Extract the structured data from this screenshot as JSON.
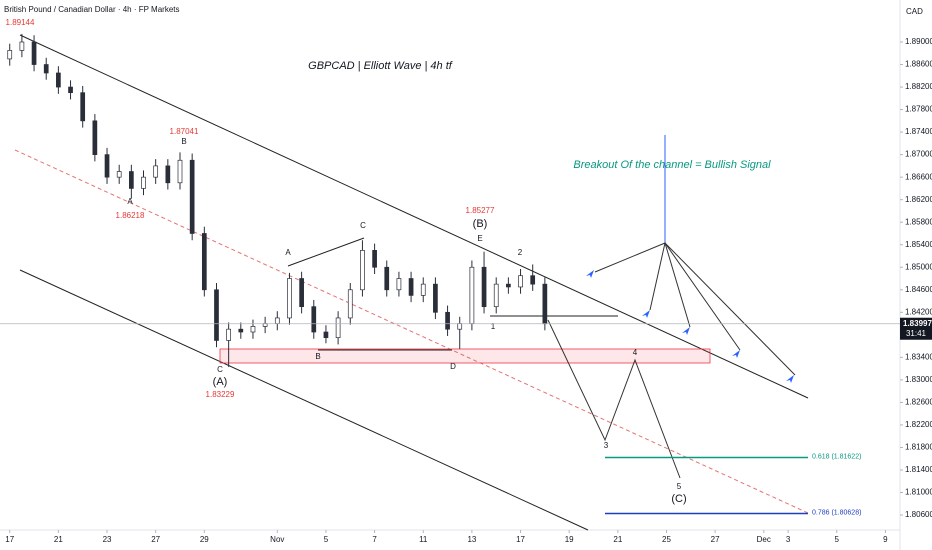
{
  "header": "British Pound / Canadian Dollar · 4h · FP Markets",
  "currency": "CAD",
  "countdown": "31:41",
  "chart_data": {
    "type": "candlestick",
    "title": "GBPCAD | Elliott Wave | 4h tf",
    "x": [
      0,
      0.5,
      1,
      1.5,
      2,
      2.5,
      3,
      3.5,
      4,
      4.5,
      5,
      5.5,
      6,
      6.5,
      7,
      7.5,
      8,
      8.5,
      9,
      9.5,
      10,
      10.5,
      11,
      11.5,
      12,
      12.5,
      13,
      13.5,
      14,
      14.5,
      15,
      15.5,
      16,
      16.5,
      17,
      17.5,
      18,
      18.5,
      19,
      19.5,
      20,
      20.5,
      21,
      21.5,
      22
    ],
    "open": [
      1.887,
      1.8885,
      1.89,
      1.886,
      1.8845,
      1.882,
      1.881,
      1.876,
      1.87,
      1.866,
      1.867,
      1.864,
      1.866,
      1.868,
      1.865,
      1.869,
      1.856,
      1.846,
      1.837,
      1.839,
      1.8385,
      1.8395,
      1.84,
      1.841,
      1.848,
      1.843,
      1.8385,
      1.8375,
      1.841,
      1.846,
      1.853,
      1.85,
      1.846,
      1.848,
      1.845,
      1.847,
      1.842,
      1.839,
      1.84,
      1.85,
      1.843,
      1.847,
      1.8465,
      1.8485,
      1.847
    ],
    "high": [
      1.8897,
      1.89144,
      1.8912,
      1.8872,
      1.8857,
      1.8832,
      1.8822,
      1.8772,
      1.8712,
      1.8682,
      1.8682,
      1.8672,
      1.8692,
      1.8692,
      1.87041,
      1.8702,
      1.8572,
      1.8472,
      1.8402,
      1.8402,
      1.8407,
      1.8412,
      1.8422,
      1.849,
      1.8492,
      1.8442,
      1.8397,
      1.8422,
      1.8472,
      1.8548,
      1.8542,
      1.8512,
      1.8492,
      1.8492,
      1.8482,
      1.8482,
      1.8432,
      1.8412,
      1.8512,
      1.85277,
      1.8482,
      1.8482,
      1.8497,
      1.8505,
      1.8482
    ],
    "low": [
      1.8858,
      1.8873,
      1.8848,
      1.8833,
      1.8808,
      1.8798,
      1.8748,
      1.8688,
      1.8648,
      1.8648,
      1.86218,
      1.8628,
      1.8648,
      1.8638,
      1.8638,
      1.8548,
      1.8448,
      1.8358,
      1.83229,
      1.8373,
      1.8373,
      1.8383,
      1.8388,
      1.8398,
      1.8418,
      1.8373,
      1.8365,
      1.8363,
      1.8398,
      1.8448,
      1.8488,
      1.8448,
      1.8448,
      1.8438,
      1.8438,
      1.8408,
      1.8378,
      1.8355,
      1.8388,
      1.8418,
      1.8418,
      1.8453,
      1.8453,
      1.8458,
      1.8388
    ],
    "close": [
      1.8885,
      1.89,
      1.886,
      1.8845,
      1.882,
      1.881,
      1.876,
      1.87,
      1.866,
      1.867,
      1.864,
      1.866,
      1.868,
      1.865,
      1.869,
      1.856,
      1.846,
      1.837,
      1.839,
      1.8385,
      1.8395,
      1.84,
      1.841,
      1.848,
      1.843,
      1.8385,
      1.8375,
      1.841,
      1.846,
      1.853,
      1.85,
      1.846,
      1.848,
      1.845,
      1.847,
      1.842,
      1.839,
      1.84,
      1.85,
      1.843,
      1.847,
      1.8465,
      1.8485,
      1.847,
      1.83997
    ],
    "color": "#2a2e39",
    "last_price": {
      "value": 1.83997,
      "label": "1.83997"
    },
    "xlim": [
      -0.4,
      36.6
    ],
    "xticks": [
      {
        "value": 0,
        "label": "17"
      },
      {
        "value": 2,
        "label": "21"
      },
      {
        "value": 4,
        "label": "23"
      },
      {
        "value": 6,
        "label": "27"
      },
      {
        "value": 8,
        "label": "29"
      },
      {
        "value": 11,
        "label": "Nov"
      },
      {
        "value": 13,
        "label": "5"
      },
      {
        "value": 15,
        "label": "7"
      },
      {
        "value": 17,
        "label": "11"
      },
      {
        "value": 19,
        "label": "13"
      },
      {
        "value": 21,
        "label": "17"
      },
      {
        "value": 23,
        "label": "19"
      },
      {
        "value": 25,
        "label": "21"
      },
      {
        "value": 27,
        "label": "25"
      },
      {
        "value": 29,
        "label": "27"
      },
      {
        "value": 31,
        "label": "Dec"
      },
      {
        "value": 32,
        "label": "3"
      },
      {
        "value": 34,
        "label": "5"
      },
      {
        "value": 36,
        "label": "9"
      }
    ],
    "ylim": [
      1.80334,
      1.89746
    ],
    "yticks": [
      {
        "value": 1.806,
        "label": "1.80600"
      },
      {
        "value": 1.81,
        "label": "1.81000"
      },
      {
        "value": 1.814,
        "label": "1.81400"
      },
      {
        "value": 1.818,
        "label": "1.81800"
      },
      {
        "value": 1.822,
        "label": "1.82200"
      },
      {
        "value": 1.826,
        "label": "1.82600"
      },
      {
        "value": 1.83,
        "label": "1.83000"
      },
      {
        "value": 1.834,
        "label": "1.83400"
      },
      {
        "value": 1.838,
        "label": "1.83800"
      },
      {
        "value": 1.842,
        "label": "1.84200"
      },
      {
        "value": 1.846,
        "label": "1.84600"
      },
      {
        "value": 1.85,
        "label": "1.85000"
      },
      {
        "value": 1.854,
        "label": "1.85400"
      },
      {
        "value": 1.858,
        "label": "1.85800"
      },
      {
        "value": 1.862,
        "label": "1.86200"
      },
      {
        "value": 1.866,
        "label": "1.86600"
      },
      {
        "value": 1.87,
        "label": "1.87000"
      },
      {
        "value": 1.874,
        "label": "1.87400"
      },
      {
        "value": 1.878,
        "label": "1.87800"
      },
      {
        "value": 1.882,
        "label": "1.88200"
      },
      {
        "value": 1.886,
        "label": "1.88600"
      },
      {
        "value": 1.89,
        "label": "1.89000"
      }
    ],
    "grid": false,
    "fib_levels": [
      {
        "ratio": 0.618,
        "level": 1.81622,
        "label": "0.618 (1.81622)",
        "color": "#089981"
      },
      {
        "ratio": 0.786,
        "level": 1.80628,
        "label": "0.786 (1.80628)",
        "color": "#1e3fbf"
      }
    ],
    "annotations": [
      "1.89144",
      "A",
      "1.86218",
      "B",
      "1.87041",
      "C",
      "(A)",
      "1.83229",
      "A",
      "B",
      "C",
      "D",
      "E",
      "(B)",
      "1.85277",
      "1",
      "2",
      "3",
      "4",
      "5",
      "(C)",
      "Breakout Of the channel = Bullish Signal"
    ]
  }
}
